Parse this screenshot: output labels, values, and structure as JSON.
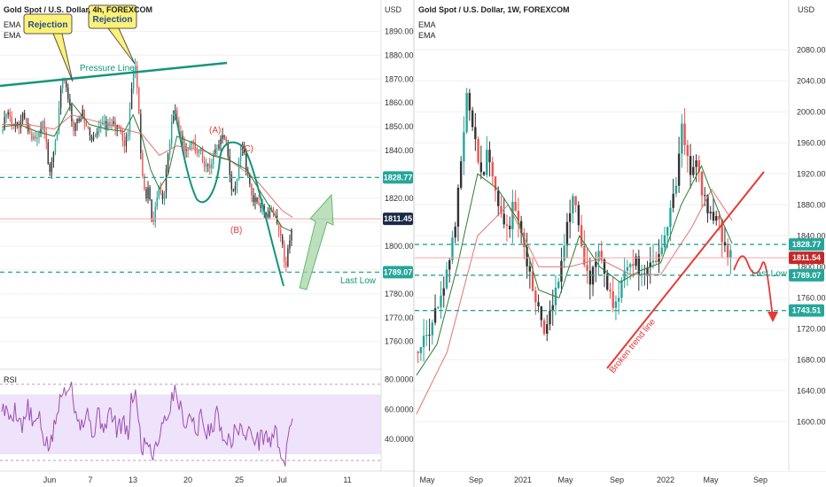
{
  "left_chart": {
    "title": "Gold Spot / U.S. Dollar, 4h, FOREXCOM",
    "ema_labels": [
      "EMA",
      "EMA"
    ],
    "currency": "USD",
    "rsi_label": "RSI",
    "annotations": {
      "rejection_1": "Rejection",
      "rejection_2": "Rejection",
      "pressure_line": "Pressure Line",
      "a": "(A)",
      "b": "(B)",
      "c": "(C)",
      "last_low": "Last Low"
    },
    "price_tags": [
      {
        "text": "1828.77",
        "value": 1828.77,
        "color": "#26a69a"
      },
      {
        "text": "1811.45",
        "value": 1811.45,
        "color": "#1b2a47"
      },
      {
        "text": "1789.07",
        "value": 1789.07,
        "color": "#26a69a"
      }
    ]
  },
  "right_chart": {
    "title": "Gold Spot / U.S. Dollar, 1W, FOREXCOM",
    "ema_labels": [
      "EMA",
      "EMA"
    ],
    "currency": "USD",
    "annotations": {
      "broken_trend": "Broken trend line",
      "last_low": "Last Low"
    },
    "price_tags": [
      {
        "text": "1828.77",
        "value": 1828.77,
        "color": "#26a69a"
      },
      {
        "text": "1811.54",
        "value": 1811.54,
        "color": "#c62828"
      },
      {
        "text": "1789.07",
        "value": 1789.07,
        "color": "#26a69a"
      },
      {
        "text": "1743.51",
        "value": 1743.51,
        "color": "#26a69a"
      }
    ]
  },
  "colors": {
    "bull": "#26a69a",
    "bear": "#ef5350",
    "candle_dark": "#333333",
    "ema_fast": "#2e7d32",
    "ema_slow": "#e57373",
    "rsi_line": "#9c4fb0",
    "rsi_band": "#efe2fb",
    "annotation_teal": "#12957a",
    "annotation_red": "#e53935"
  },
  "chart_data": [
    {
      "type": "candlestick",
      "timeframe": "4h",
      "xlabel": "",
      "ylabel": "USD",
      "ylim": [
        1751,
        1902
      ],
      "y_ticks": [
        1760,
        1770,
        1780,
        1790,
        1800,
        1810,
        1820,
        1830,
        1840,
        1850,
        1860,
        1870,
        1880,
        1890
      ],
      "y_tick_labels": [
        "1760.00",
        "1770.00",
        "1780.00",
        "1790.00",
        "1800.00",
        "1810.00",
        "1820.00",
        "1830.00",
        "1840.00",
        "1850.00",
        "1860.00",
        "1870.00",
        "1880.00",
        "1890.00"
      ],
      "x_tick_labels": [
        "Jun",
        "7",
        "13",
        "20",
        "25",
        "Jul",
        "11"
      ],
      "path_series": [
        {
          "name": "close_path",
          "points": [
            [
              0,
              1848
            ],
            [
              6,
              1858
            ],
            [
              12,
              1852
            ],
            [
              18,
              1850
            ],
            [
              24,
              1855
            ],
            [
              30,
              1850
            ],
            [
              36,
              1845
            ],
            [
              42,
              1848
            ],
            [
              48,
              1852
            ],
            [
              54,
              1830
            ],
            [
              58,
              1837
            ],
            [
              62,
              1845
            ],
            [
              66,
              1860
            ],
            [
              70,
              1872
            ],
            [
              74,
              1866
            ],
            [
              78,
              1858
            ],
            [
              82,
              1848
            ],
            [
              86,
              1852
            ],
            [
              92,
              1856
            ],
            [
              98,
              1850
            ],
            [
              104,
              1843
            ],
            [
              110,
              1848
            ],
            [
              116,
              1852
            ],
            [
              122,
              1850
            ],
            [
              128,
              1852
            ],
            [
              134,
              1848
            ],
            [
              140,
              1842
            ],
            [
              144,
              1846
            ],
            [
              148,
              1866
            ],
            [
              152,
              1876
            ],
            [
              156,
              1860
            ],
            [
              160,
              1830
            ],
            [
              164,
              1820
            ],
            [
              168,
              1825
            ],
            [
              172,
              1810
            ],
            [
              176,
              1816
            ],
            [
              180,
              1826
            ],
            [
              184,
              1818
            ],
            [
              190,
              1838
            ],
            [
              194,
              1852
            ],
            [
              198,
              1856
            ],
            [
              202,
              1848
            ],
            [
              206,
              1845
            ],
            [
              210,
              1838
            ],
            [
              214,
              1842
            ],
            [
              218,
              1846
            ],
            [
              222,
              1838
            ],
            [
              226,
              1843
            ],
            [
              230,
              1836
            ],
            [
              236,
              1832
            ],
            [
              242,
              1838
            ],
            [
              248,
              1843
            ],
            [
              254,
              1848
            ],
            [
              258,
              1840
            ],
            [
              262,
              1826
            ],
            [
              266,
              1822
            ],
            [
              270,
              1832
            ],
            [
              274,
              1843
            ],
            [
              278,
              1836
            ],
            [
              284,
              1823
            ],
            [
              290,
              1818
            ],
            [
              296,
              1816
            ],
            [
              302,
              1812
            ],
            [
              308,
              1816
            ],
            [
              312,
              1812
            ],
            [
              318,
              1804
            ],
            [
              324,
              1792
            ],
            [
              328,
              1800
            ],
            [
              332,
              1809
            ]
          ]
        },
        {
          "name": "rsi",
          "points": [
            [
              0,
              62
            ],
            [
              8,
              55
            ],
            [
              16,
              60
            ],
            [
              24,
              48
            ],
            [
              30,
              62
            ],
            [
              36,
              48
            ],
            [
              42,
              55
            ],
            [
              48,
              40
            ],
            [
              56,
              35
            ],
            [
              62,
              55
            ],
            [
              70,
              72
            ],
            [
              78,
              80
            ],
            [
              84,
              60
            ],
            [
              92,
              50
            ],
            [
              98,
              58
            ],
            [
              104,
              44
            ],
            [
              110,
              56
            ],
            [
              116,
              49
            ],
            [
              124,
              58
            ],
            [
              132,
              46
            ],
            [
              138,
              52
            ],
            [
              144,
              40
            ],
            [
              148,
              66
            ],
            [
              152,
              74
            ],
            [
              156,
              52
            ],
            [
              160,
              34
            ],
            [
              166,
              40
            ],
            [
              172,
              30
            ],
            [
              180,
              44
            ],
            [
              186,
              55
            ],
            [
              192,
              60
            ],
            [
              198,
              76
            ],
            [
              204,
              60
            ],
            [
              210,
              52
            ],
            [
              216,
              56
            ],
            [
              222,
              46
            ],
            [
              228,
              55
            ],
            [
              234,
              42
            ],
            [
              240,
              50
            ],
            [
              246,
              56
            ],
            [
              252,
              46
            ],
            [
              258,
              38
            ],
            [
              266,
              44
            ],
            [
              272,
              50
            ],
            [
              278,
              40
            ],
            [
              286,
              46
            ],
            [
              292,
              38
            ],
            [
              300,
              44
            ],
            [
              306,
              38
            ],
            [
              312,
              46
            ],
            [
              318,
              32
            ],
            [
              324,
              25
            ],
            [
              328,
              40
            ],
            [
              332,
              57
            ]
          ]
        }
      ],
      "ema_fast": [
        [
          0,
          1850
        ],
        [
          20,
          1851
        ],
        [
          40,
          1848
        ],
        [
          60,
          1846
        ],
        [
          80,
          1860
        ],
        [
          100,
          1851
        ],
        [
          120,
          1849
        ],
        [
          140,
          1848
        ],
        [
          150,
          1855
        ],
        [
          160,
          1846
        ],
        [
          170,
          1832
        ],
        [
          180,
          1824
        ],
        [
          190,
          1830
        ],
        [
          200,
          1846
        ],
        [
          220,
          1843
        ],
        [
          240,
          1838
        ],
        [
          260,
          1836
        ],
        [
          280,
          1832
        ],
        [
          300,
          1820
        ],
        [
          320,
          1808
        ],
        [
          332,
          1806
        ]
      ],
      "ema_slow": [
        [
          0,
          1851
        ],
        [
          30,
          1851
        ],
        [
          60,
          1849
        ],
        [
          80,
          1855
        ],
        [
          110,
          1852
        ],
        [
          140,
          1849
        ],
        [
          160,
          1847
        ],
        [
          180,
          1838
        ],
        [
          200,
          1842
        ],
        [
          230,
          1840
        ],
        [
          260,
          1836
        ],
        [
          290,
          1828
        ],
        [
          320,
          1815
        ],
        [
          332,
          1812
        ]
      ],
      "lines": {
        "resistance": 1828.77,
        "support": 1789.07,
        "current": 1811.45
      },
      "rsi_range": [
        0,
        100
      ],
      "rsi_band": [
        30,
        70
      ],
      "rsi_ticks": [
        40,
        60,
        80
      ],
      "rsi_tick_labels": [
        "40.0000",
        "60.0000",
        "80.0000"
      ]
    },
    {
      "type": "candlestick",
      "timeframe": "1W",
      "xlabel": "",
      "ylabel": "USD",
      "ylim": [
        1550,
        2110
      ],
      "y_ticks": [
        1600,
        1640,
        1680,
        1720,
        1760,
        1800,
        1840,
        1880,
        1920,
        1960,
        2000,
        2040,
        2080
      ],
      "y_tick_labels": [
        "1600.00",
        "1640.00",
        "1680.00",
        "1720.00",
        "1760.00",
        "1800.00",
        "1840.00",
        "1880.00",
        "1920.00",
        "1960.00",
        "2000.00",
        "2040.00",
        "2080.00"
      ],
      "x_tick_labels": [
        "May",
        "Sep",
        "2021",
        "May",
        "Sep",
        "2022",
        "May",
        "Sep"
      ],
      "path_series": [
        {
          "name": "close_path",
          "points": [
            [
              0,
              1690
            ],
            [
              5,
              1700
            ],
            [
              10,
              1710
            ],
            [
              15,
              1725
            ],
            [
              20,
              1745
            ],
            [
              25,
              1760
            ],
            [
              30,
              1790
            ],
            [
              35,
              1830
            ],
            [
              40,
              1880
            ],
            [
              45,
              1960
            ],
            [
              50,
              2030
            ],
            [
              55,
              1980
            ],
            [
              60,
              1940
            ],
            [
              65,
              1910
            ],
            [
              70,
              1950
            ],
            [
              75,
              1920
            ],
            [
              80,
              1880
            ],
            [
              85,
              1860
            ],
            [
              90,
              1840
            ],
            [
              95,
              1880
            ],
            [
              100,
              1860
            ],
            [
              105,
              1830
            ],
            [
              110,
              1800
            ],
            [
              115,
              1760
            ],
            [
              120,
              1740
            ],
            [
              125,
              1720
            ],
            [
              130,
              1735
            ],
            [
              135,
              1760
            ],
            [
              140,
              1790
            ],
            [
              145,
              1830
            ],
            [
              150,
              1870
            ],
            [
              155,
              1890
            ],
            [
              160,
              1840
            ],
            [
              165,
              1800
            ],
            [
              170,
              1780
            ],
            [
              175,
              1800
            ],
            [
              180,
              1820
            ],
            [
              185,
              1790
            ],
            [
              190,
              1760
            ],
            [
              195,
              1750
            ],
            [
              200,
              1770
            ],
            [
              205,
              1790
            ],
            [
              210,
              1800
            ],
            [
              215,
              1810
            ],
            [
              220,
              1790
            ],
            [
              225,
              1800
            ],
            [
              230,
              1810
            ],
            [
              235,
              1800
            ],
            [
              240,
              1820
            ],
            [
              245,
              1850
            ],
            [
              250,
              1880
            ],
            [
              255,
              1910
            ],
            [
              260,
              1980
            ],
            [
              265,
              1950
            ],
            [
              270,
              1920
            ],
            [
              275,
              1940
            ],
            [
              280,
              1900
            ],
            [
              285,
              1880
            ],
            [
              290,
              1860
            ],
            [
              295,
              1870
            ],
            [
              300,
              1840
            ],
            [
              305,
              1820
            ],
            [
              310,
              1812
            ]
          ]
        }
      ],
      "ema_fast": [
        [
          0,
          1660
        ],
        [
          20,
          1700
        ],
        [
          40,
          1800
        ],
        [
          60,
          1920
        ],
        [
          80,
          1900
        ],
        [
          100,
          1860
        ],
        [
          120,
          1770
        ],
        [
          140,
          1760
        ],
        [
          160,
          1840
        ],
        [
          180,
          1800
        ],
        [
          200,
          1780
        ],
        [
          220,
          1795
        ],
        [
          240,
          1805
        ],
        [
          260,
          1880
        ],
        [
          280,
          1930
        ],
        [
          300,
          1860
        ],
        [
          310,
          1830
        ]
      ],
      "ema_slow": [
        [
          0,
          1610
        ],
        [
          30,
          1690
        ],
        [
          60,
          1840
        ],
        [
          90,
          1880
        ],
        [
          120,
          1800
        ],
        [
          150,
          1800
        ],
        [
          180,
          1810
        ],
        [
          210,
          1790
        ],
        [
          240,
          1790
        ],
        [
          270,
          1850
        ],
        [
          290,
          1900
        ],
        [
          310,
          1860
        ]
      ],
      "lines": {
        "r1": 1828.77,
        "current": 1811.54,
        "s1": 1789.07,
        "s2": 1743.51
      }
    }
  ]
}
